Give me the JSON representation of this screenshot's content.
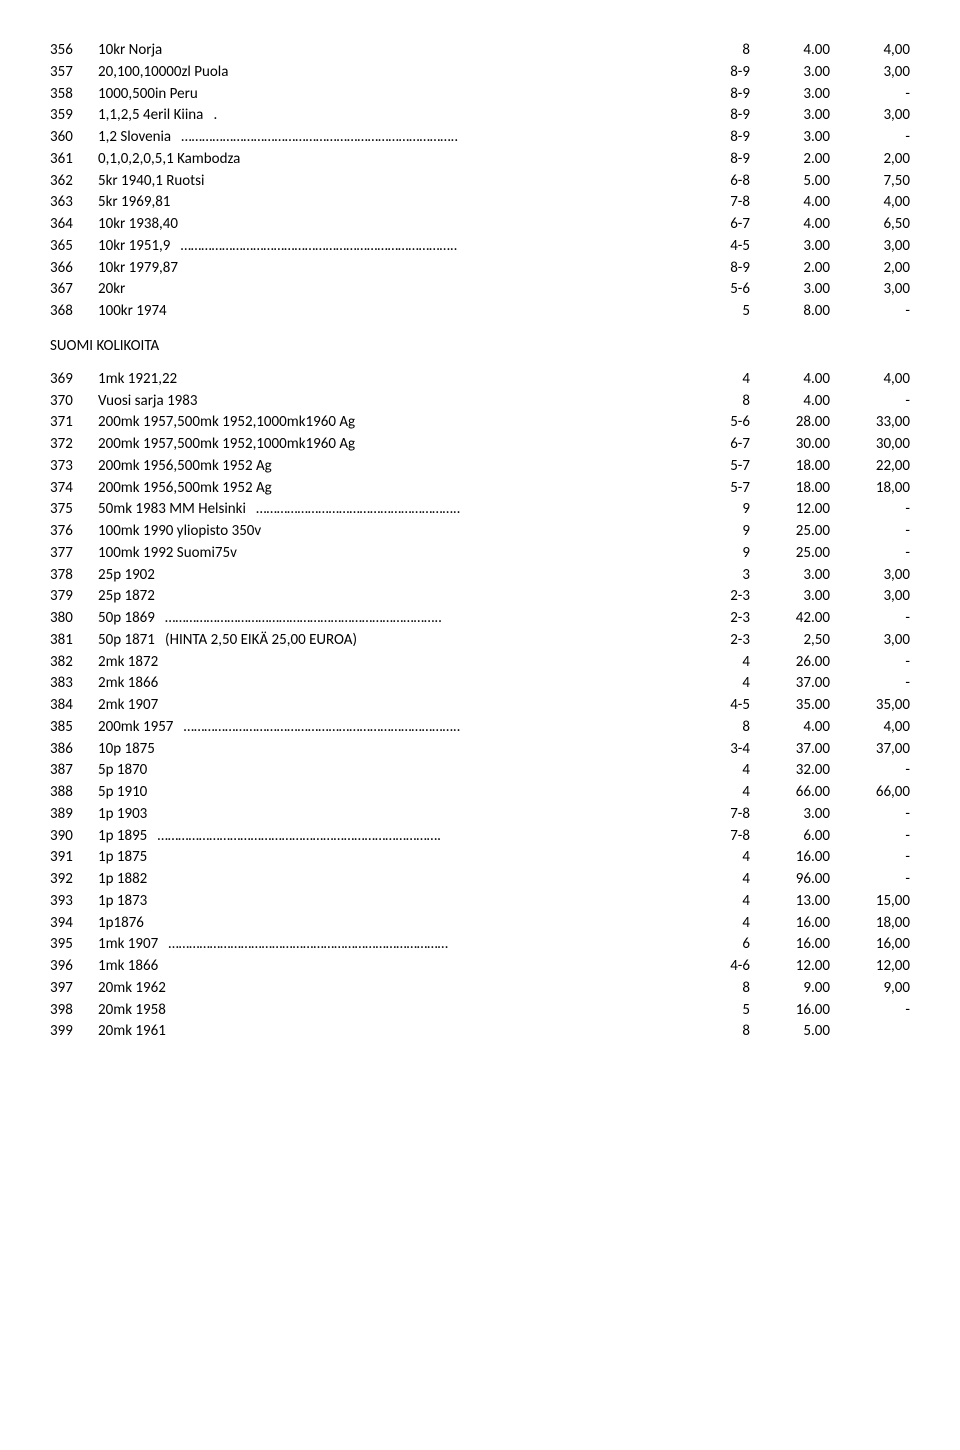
{
  "section_title": "SUOMI KOLIKOITA",
  "rows_top": [
    {
      "n": "356",
      "d": "10kr Norja",
      "g": "8",
      "p": "4.00",
      "r": "4,00"
    },
    {
      "n": "357",
      "d": "20,100,10000zl Puola",
      "g": "8-9",
      "p": "3.00",
      "r": "3,00"
    },
    {
      "n": "358",
      "d": "1000,500in Peru",
      "g": "8-9",
      "p": "3.00",
      "r": "-"
    },
    {
      "n": "359",
      "d": "1,1,2,5 4eril Kiina   .",
      "g": "8-9",
      "p": "3.00",
      "r": "3,00"
    },
    {
      "n": "360",
      "d": "1,2 Slovenia   ……………………………………………………………………..",
      "g": "8-9",
      "p": "3.00",
      "r": "-"
    },
    {
      "n": "361",
      "d": "0,1,0,2,0,5,1 Kambodza",
      "g": "8-9",
      "p": "2.00",
      "r": "2,00"
    },
    {
      "n": "362",
      "d": "5kr 1940,1 Ruotsi",
      "g": "6-8",
      "p": "5.00",
      "r": "7,50"
    },
    {
      "n": "363",
      "d": "5kr 1969,81",
      "g": "7-8",
      "p": "4.00",
      "r": "4,00"
    },
    {
      "n": "364",
      "d": "10kr 1938,40",
      "g": "6-7",
      "p": "4.00",
      "r": "6,50"
    },
    {
      "n": "365",
      "d": "10kr 1951,9   ……………………………………………………………………..",
      "g": "4-5",
      "p": "3.00",
      "r": "3,00"
    },
    {
      "n": "366",
      "d": "10kr 1979,87",
      "g": "8-9",
      "p": "2.00",
      "r": "2,00"
    },
    {
      "n": "367",
      "d": "20kr",
      "g": "5-6",
      "p": "3.00",
      "r": "3,00"
    },
    {
      "n": "368",
      "d": "100kr 1974",
      "g": "5",
      "p": "8.00",
      "r": "-"
    }
  ],
  "rows_bottom": [
    {
      "n": "369",
      "d": "1mk 1921,22",
      "g": "4",
      "p": "4.00",
      "r": "4,00"
    },
    {
      "n": "370",
      "d": "Vuosi sarja 1983",
      "g": "8",
      "p": "4.00",
      "r": "-"
    },
    {
      "n": "371",
      "d": "200mk 1957,500mk 1952,1000mk1960 Ag",
      "g": "5-6",
      "p": "28.00",
      "r": "33,00"
    },
    {
      "n": "372",
      "d": "200mk 1957,500mk 1952,1000mk1960 Ag",
      "g": "6-7",
      "p": "30.00",
      "r": "30,00"
    },
    {
      "n": "373",
      "d": "200mk 1956,500mk 1952 Ag",
      "g": "5-7",
      "p": "18.00",
      "r": "22,00"
    },
    {
      "n": "374",
      "d": "200mk 1956,500mk 1952 Ag",
      "g": "5-7",
      "p": "18.00",
      "r": "18,00"
    },
    {
      "n": "375",
      "d": "50mk 1983 MM Helsinki   …………………………………………………..",
      "g": "9",
      "p": "12.00",
      "r": "-"
    },
    {
      "n": "376",
      "d": "100mk 1990 yliopisto 350v",
      "g": "9",
      "p": "25.00",
      "r": "-"
    },
    {
      "n": "377",
      "d": "100mk 1992 Suomi75v",
      "g": "9",
      "p": "25.00",
      "r": "-"
    },
    {
      "n": "378",
      "d": "25p 1902",
      "g": "3",
      "p": "3.00",
      "r": "3,00"
    },
    {
      "n": "379",
      "d": "25p 1872",
      "g": "2-3",
      "p": "3.00",
      "r": "3,00"
    },
    {
      "n": "380",
      "d": "50p 1869   ……………………………………………………………………..",
      "g": "2-3",
      "p": "42.00",
      "r": "-"
    },
    {
      "n": "381",
      "d": "50p 1871   (HINTA 2,50 EIKÄ 25,00 EUROA)",
      "g": "2-3",
      "p": "2,50",
      "r": "3,00"
    },
    {
      "n": "382",
      "d": "2mk 1872",
      "g": "4",
      "p": "26.00",
      "r": "-"
    },
    {
      "n": "383",
      "d": "2mk 1866",
      "g": "4",
      "p": "37.00",
      "r": "-"
    },
    {
      "n": "384",
      "d": "2mk 1907",
      "g": "4-5",
      "p": "35.00",
      "r": "35,00"
    },
    {
      "n": "385",
      "d": "200mk 1957   ……………………………………………………………………..",
      "g": "8",
      "p": "4.00",
      "r": "4,00"
    },
    {
      "n": "386",
      "d": "10p 1875",
      "g": "3-4",
      "p": "37.00",
      "r": "37,00"
    },
    {
      "n": "387",
      "d": "5p 1870",
      "g": "4",
      "p": "32.00",
      "r": "-"
    },
    {
      "n": "388",
      "d": "5p 1910",
      "g": "4",
      "p": "66.00",
      "r": "66,00"
    },
    {
      "n": "389",
      "d": "1p 1903",
      "g": "7-8",
      "p": "3.00",
      "r": "-"
    },
    {
      "n": "390",
      "d": "1p 1895   ……………………………………………………………………….",
      "g": "7-8",
      "p": "6.00",
      "r": "-"
    },
    {
      "n": "391",
      "d": "1p 1875",
      "g": "4",
      "p": "16.00",
      "r": "-"
    },
    {
      "n": "392",
      "d": "1p 1882",
      "g": "4",
      "p": "96.00",
      "r": "-"
    },
    {
      "n": "393",
      "d": "1p 1873",
      "g": "4",
      "p": "13.00",
      "r": "15,00"
    },
    {
      "n": "394",
      "d": "1p1876",
      "g": "4",
      "p": "16.00",
      "r": "18,00"
    },
    {
      "n": "395",
      "d": "1mk 1907   ………………………………………………………………………",
      "g": "6",
      "p": "16.00",
      "r": "16,00"
    },
    {
      "n": "396",
      "d": "1mk 1866",
      "g": "4-6",
      "p": "12.00",
      "r": "12,00"
    },
    {
      "n": "397",
      "d": "20mk 1962",
      "g": "8",
      "p": "9.00",
      "r": "9,00"
    },
    {
      "n": "398",
      "d": "20mk 1958",
      "g": "5",
      "p": "16.00",
      "r": "-"
    },
    {
      "n": "399",
      "d": "20mk 1961",
      "g": "8",
      "p": "5.00",
      "r": ""
    }
  ]
}
